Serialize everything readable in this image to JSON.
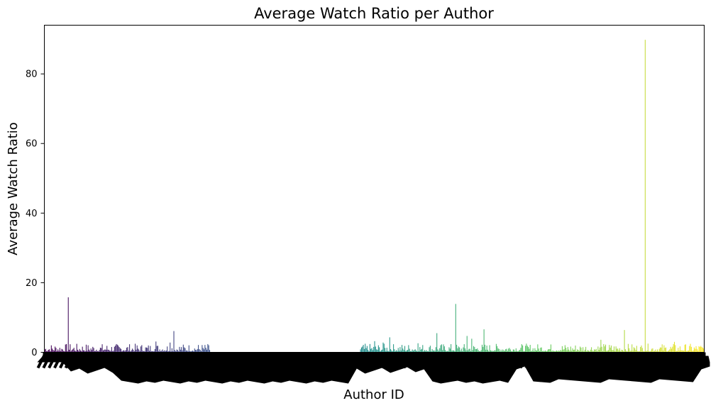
{
  "chart_data": {
    "type": "bar",
    "title": "Average Watch Ratio per Author",
    "xlabel": "Author ID",
    "ylabel": "Average Watch Ratio",
    "ylim": [
      0,
      94
    ],
    "yticks": [
      0,
      20,
      40,
      60,
      80
    ],
    "grid": false,
    "legend": "none",
    "colormap": [
      "#440154",
      "#3b528b",
      "#21918c",
      "#5ec962",
      "#fde725"
    ],
    "category_count": 700,
    "category_note": "Author ID tick labels are rotated and overlap into an unreadable solid band",
    "typical_value_range": [
      0.3,
      2.5
    ],
    "gap_category_range": [
      176,
      334
    ],
    "notable_bars": [
      {
        "category_index": 25,
        "value": 15.8
      },
      {
        "category_index": 118,
        "value": 3.1
      },
      {
        "category_index": 133,
        "value": 2.8
      },
      {
        "category_index": 137,
        "value": 6.1
      },
      {
        "category_index": 350,
        "value": 3.2
      },
      {
        "category_index": 359,
        "value": 2.8
      },
      {
        "category_index": 366,
        "value": 4.3
      },
      {
        "category_index": 396,
        "value": 2.6
      },
      {
        "category_index": 416,
        "value": 5.5
      },
      {
        "category_index": 436,
        "value": 13.9
      },
      {
        "category_index": 448,
        "value": 4.7
      },
      {
        "category_index": 453,
        "value": 3.9
      },
      {
        "category_index": 466,
        "value": 6.6
      },
      {
        "category_index": 590,
        "value": 3.6
      },
      {
        "category_index": 615,
        "value": 6.4
      },
      {
        "category_index": 637,
        "value": 89.8
      },
      {
        "category_index": 668,
        "value": 3.0
      }
    ]
  }
}
